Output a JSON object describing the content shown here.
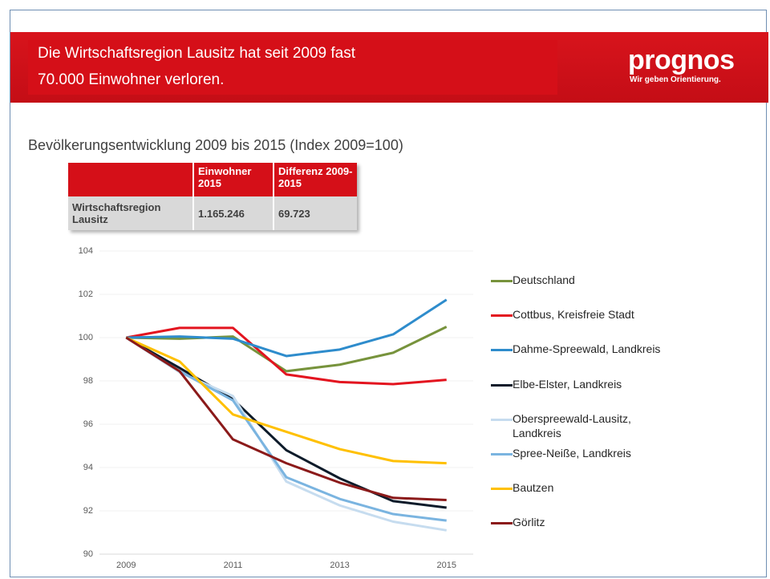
{
  "header": {
    "title": [
      "Die Wirtschaftsregion Lausitz hat seit 2009 fast",
      "70.000 Einwohner verloren."
    ],
    "logo": "prognos",
    "tagline": "Wir geben Orientierung."
  },
  "table": {
    "columns": [
      "",
      "Einwohner 2015",
      "Differenz 2009-2015"
    ],
    "rows": [
      [
        "Wirtschaftsregion Lausitz",
        "1.165.246",
        "69.723"
      ]
    ]
  },
  "chart_data": {
    "type": "line",
    "title": "Bevölkerungsentwicklung 2009 bis 2015 (Index 2009=100)",
    "x": [
      2009,
      2010,
      2011,
      2012,
      2013,
      2014,
      2015
    ],
    "xlim": [
      2008.5,
      2015.5
    ],
    "xticks": [
      2009,
      2011,
      2013,
      2015
    ],
    "ylim": [
      90,
      104
    ],
    "yticks": [
      90,
      92,
      94,
      96,
      98,
      100,
      102,
      104
    ],
    "grid": true,
    "series": [
      {
        "name": "Deutschland",
        "color": "#77933c",
        "values": [
          100,
          99.95,
          100.05,
          98.45,
          98.75,
          99.3,
          100.5
        ]
      },
      {
        "name": "Cottbus, Kreisfreie Stadt",
        "color": "#e3141f",
        "values": [
          100,
          100.45,
          100.45,
          98.3,
          97.95,
          97.85,
          98.05
        ]
      },
      {
        "name": "Dahme-Spreewald, Landkreis",
        "color": "#2e8ccc",
        "values": [
          100,
          100.05,
          99.95,
          99.15,
          99.45,
          100.15,
          101.75
        ]
      },
      {
        "name": "Elbe-Elster, Landkreis",
        "color": "#0d1b2a",
        "values": [
          100,
          98.6,
          97.15,
          94.8,
          93.5,
          92.45,
          92.15
        ]
      },
      {
        "name": "Oberspreewald-Lausitz, Landkreis",
        "color": "#c6dcef",
        "values": [
          100,
          98.4,
          97.3,
          93.35,
          92.25,
          91.5,
          91.1
        ]
      },
      {
        "name": "Spree-Neiße, Landkreis",
        "color": "#7ab4e0",
        "values": [
          100,
          98.45,
          97.1,
          93.55,
          92.55,
          91.85,
          91.55
        ]
      },
      {
        "name": "Bautzen",
        "color": "#ffc000",
        "values": [
          100,
          98.9,
          96.45,
          95.65,
          94.85,
          94.3,
          94.2
        ]
      },
      {
        "name": "Görlitz",
        "color": "#8b1a1a",
        "values": [
          100,
          98.45,
          95.3,
          94.2,
          93.3,
          92.6,
          92.5
        ]
      }
    ]
  }
}
